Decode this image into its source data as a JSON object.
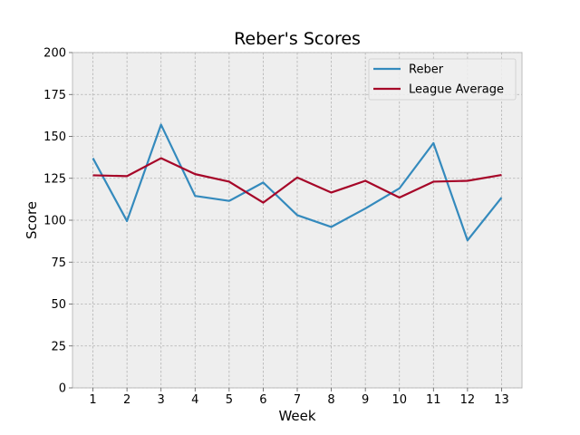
{
  "chart_data": {
    "type": "line",
    "title": "Reber's Scores",
    "xlabel": "Week",
    "ylabel": "Score",
    "x": [
      1,
      2,
      3,
      4,
      5,
      6,
      7,
      8,
      9,
      10,
      11,
      12,
      13
    ],
    "xticks": [
      "1",
      "2",
      "3",
      "4",
      "5",
      "6",
      "7",
      "8",
      "9",
      "10",
      "11",
      "12",
      "13"
    ],
    "xlim": [
      0.4,
      13.6
    ],
    "ylim": [
      0,
      200
    ],
    "yticks": [
      "0",
      "25",
      "50",
      "75",
      "100",
      "125",
      "150",
      "175",
      "200"
    ],
    "grid": true,
    "legend_position": "top-right",
    "series": [
      {
        "name": "Reber",
        "color": "#348ABD",
        "values": [
          137,
          99.5,
          157,
          114.5,
          111.5,
          122.5,
          103,
          96,
          107,
          119,
          146,
          88,
          113.5
        ]
      },
      {
        "name": "League Average",
        "color": "#A60628",
        "values": [
          126.8,
          126.3,
          137,
          127.5,
          123,
          110.5,
          125.5,
          116.5,
          123.5,
          113.5,
          123,
          123.5,
          127
        ]
      }
    ]
  }
}
